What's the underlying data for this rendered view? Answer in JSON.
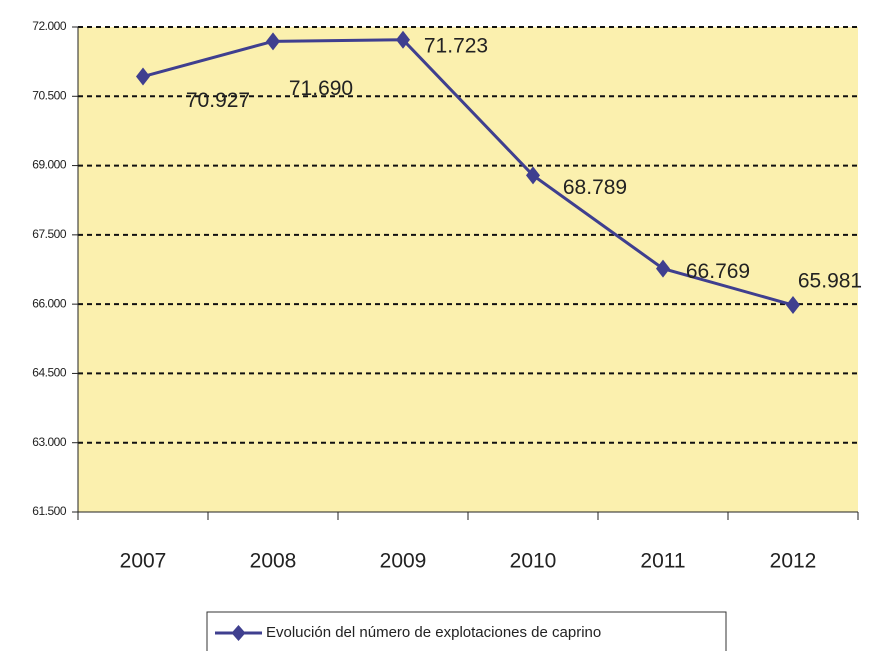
{
  "chart_data": {
    "type": "line",
    "categories": [
      "2007",
      "2008",
      "2009",
      "2010",
      "2011",
      "2012"
    ],
    "series": [
      {
        "name": "Evolución del número de explotaciones de caprino",
        "color": "#3f3f8f",
        "values": [
          70927,
          71690,
          71723,
          68789,
          66769,
          65981
        ],
        "value_labels": [
          "70.927",
          "71.690",
          "71.723",
          "68.789",
          "66.769",
          "65.981"
        ]
      }
    ],
    "ylim": [
      61500,
      72000
    ],
    "yticks": [
      {
        "value": 61500,
        "label": "61.500"
      },
      {
        "value": 63000,
        "label": "63.000"
      },
      {
        "value": 64500,
        "label": "64.500"
      },
      {
        "value": 66000,
        "label": "66.000"
      },
      {
        "value": 67500,
        "label": "67.500"
      },
      {
        "value": 69000,
        "label": "69.000"
      },
      {
        "value": 70500,
        "label": "70.500"
      },
      {
        "value": 72000,
        "label": "72.000"
      }
    ],
    "grid": true,
    "legend": "bottom"
  }
}
